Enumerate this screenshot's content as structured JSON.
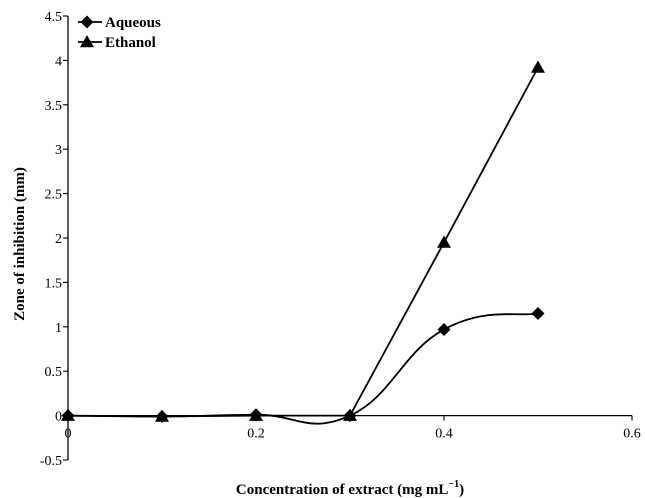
{
  "chart_data": {
    "type": "line",
    "xlabel": "Concentration of extract (mg mL",
    "xlabel_sup": "−1",
    "xlabel_end": ")",
    "ylabel": "Zone of inhibition (mm)",
    "xlim": [
      0,
      0.6
    ],
    "ylim": [
      -0.5,
      4.5
    ],
    "x_ticks": [
      0,
      0.2,
      0.4,
      0.6
    ],
    "x_tick_labels": [
      "0",
      "0.2",
      "0.4",
      "0.6"
    ],
    "y_ticks": [
      -0.5,
      0,
      0.5,
      1,
      1.5,
      2,
      2.5,
      3,
      3.5,
      4,
      4.5
    ],
    "y_tick_labels": [
      "-0.5",
      "0",
      "0.5",
      "1",
      "1.5",
      "2",
      "2.5",
      "3",
      "3.5",
      "4",
      "4.5"
    ],
    "legend_position": "top-left",
    "grid": false,
    "series": [
      {
        "name": "Aqueous",
        "marker": "diamond",
        "color": "#000000",
        "smooth": true,
        "x": [
          0,
          0.1,
          0.2,
          0.3,
          0.4,
          0.5
        ],
        "y": [
          0,
          -0.01,
          0.01,
          0,
          0.97,
          1.15
        ]
      },
      {
        "name": "Ethanol",
        "marker": "triangle",
        "color": "#000000",
        "smooth": false,
        "x": [
          0,
          0.1,
          0.2,
          0.3,
          0.4,
          0.5
        ],
        "y": [
          0,
          -0.01,
          0,
          0,
          1.95,
          3.92
        ]
      }
    ]
  }
}
